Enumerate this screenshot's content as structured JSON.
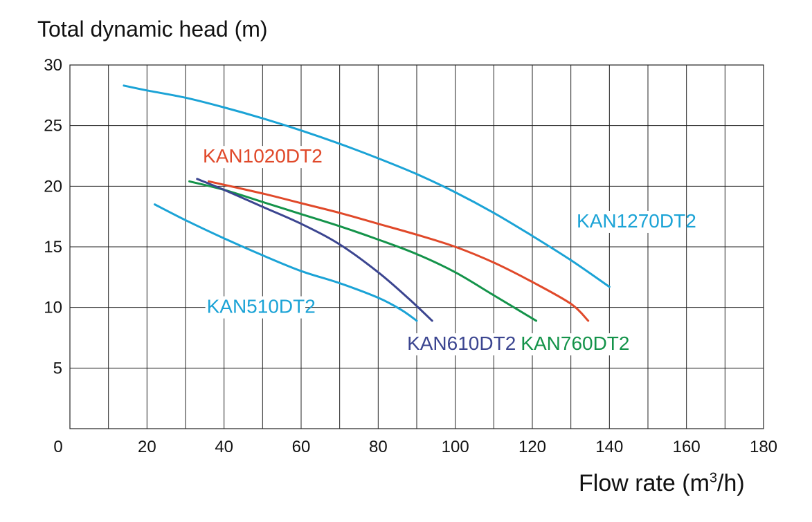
{
  "chart_data": {
    "type": "line",
    "ylabel": "Total dynamic head (m)",
    "xlabel_main": "Flow rate (m",
    "xlabel_sup": "3",
    "xlabel_end": "/h)",
    "xlim": [
      0,
      180
    ],
    "ylim": [
      0,
      30
    ],
    "xticks": [
      0,
      20,
      40,
      60,
      80,
      100,
      120,
      140,
      160,
      180
    ],
    "yticks": [
      5,
      10,
      15,
      20,
      25,
      30
    ],
    "grid_x_step": 10,
    "grid_y_step": 5,
    "grid": true,
    "series": [
      {
        "name": "KAN1270DT2",
        "color": "#1ba3d6",
        "x": [
          14,
          20,
          30,
          40,
          50,
          60,
          70,
          80,
          90,
          100,
          110,
          120,
          130,
          140
        ],
        "y": [
          28.3,
          27.9,
          27.3,
          26.5,
          25.6,
          24.6,
          23.5,
          22.3,
          21.0,
          19.5,
          17.8,
          15.9,
          13.9,
          11.7
        ]
      },
      {
        "name": "KAN1020DT2",
        "color": "#e0492a",
        "x": [
          36,
          50,
          60,
          70,
          80,
          90,
          100,
          110,
          120,
          130,
          134.5
        ],
        "y": [
          20.4,
          19.4,
          18.6,
          17.8,
          16.9,
          16.0,
          15.0,
          13.7,
          12.1,
          10.3,
          8.9
        ]
      },
      {
        "name": "KAN760DT2",
        "color": "#14934a",
        "x": [
          31,
          40,
          50,
          60,
          70,
          80,
          90,
          100,
          110,
          121
        ],
        "y": [
          20.4,
          19.7,
          18.7,
          17.7,
          16.7,
          15.6,
          14.4,
          12.9,
          11.0,
          8.9
        ]
      },
      {
        "name": "KAN610DT2",
        "color": "#3b4590",
        "x": [
          33,
          40,
          50,
          60,
          70,
          80,
          88,
          94
        ],
        "y": [
          20.6,
          19.7,
          18.3,
          16.9,
          15.2,
          12.9,
          10.7,
          8.9
        ]
      },
      {
        "name": "KAN510DT2",
        "color": "#1ba3d6",
        "x": [
          22,
          30,
          40,
          50,
          60,
          70,
          80,
          86,
          90
        ],
        "y": [
          18.5,
          17.2,
          15.7,
          14.3,
          13.0,
          12.0,
          10.8,
          9.8,
          8.9
        ]
      }
    ],
    "series_labels": [
      {
        "text": "KAN1270DT2",
        "color": "#1ba3d6",
        "x": 131.5,
        "y": 16.6
      },
      {
        "text": "KAN1020DT2",
        "color": "#e0492a",
        "x": 34.5,
        "y": 21.95
      },
      {
        "text": "KAN760DT2",
        "color": "#14934a",
        "x": 117,
        "y": 6.5
      },
      {
        "text": "KAN610DT2",
        "color": "#3b4590",
        "x": 87.5,
        "y": 6.5
      },
      {
        "text": "KAN510DT2",
        "color": "#1ba3d6",
        "x": 35.5,
        "y": 9.55
      }
    ]
  }
}
